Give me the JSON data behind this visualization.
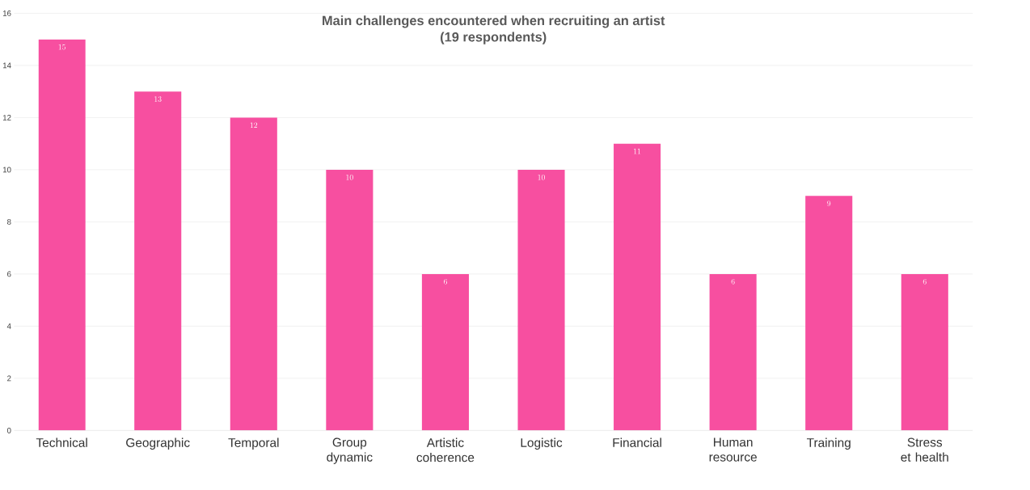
{
  "chart_data": {
    "type": "bar",
    "title": "Main challenges encountered when recruiting an artist",
    "subtitle": "(19 respondents)",
    "categories": [
      "Technical",
      "Geographic",
      "Temporal",
      "Group dynamic",
      "Artistic coherence",
      "Logistic",
      "Financial",
      "Human resource",
      "Training",
      "Stress et health"
    ],
    "values": [
      15,
      13,
      12,
      10,
      6,
      10,
      11,
      6,
      9,
      6
    ],
    "color": "#f74fa0",
    "ylim": [
      0,
      16
    ],
    "yticks": [
      0,
      2,
      4,
      6,
      8,
      10,
      12,
      14,
      16
    ],
    "grid": "y",
    "data_labels": true
  }
}
